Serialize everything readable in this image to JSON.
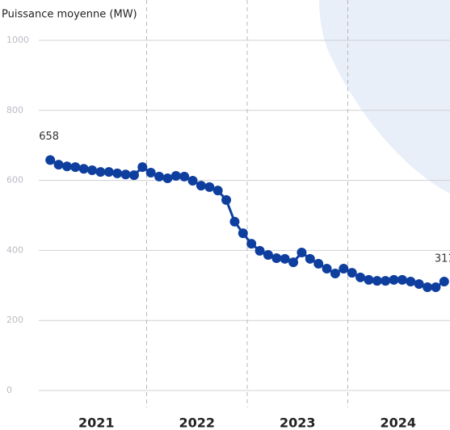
{
  "chart_data": {
    "type": "line",
    "title": "Puissance moyenne (MW)",
    "x": [
      0.5,
      1.5,
      2.5,
      3.5,
      4.5,
      5.5,
      6.5,
      7.5,
      8.5,
      9.5,
      10.5,
      11.5,
      12.5,
      13.5,
      14.5,
      15.5,
      16.5,
      17.5,
      18.5,
      19.5,
      20.5,
      21.5,
      22.5,
      23.5,
      24.5,
      25.5,
      26.5,
      27.5,
      28.5,
      29.5,
      30.5,
      31.5,
      32.5,
      33.5,
      34.5,
      35.5,
      36.5,
      37.5,
      38.5,
      39.5,
      40.5,
      41.5,
      42.5,
      43.5,
      44.5,
      45.5,
      46.5,
      47.5
    ],
    "series": [
      {
        "name": "Puissance moyenne",
        "color": "#0f3f9e",
        "values": [
          658,
          645,
          640,
          638,
          633,
          629,
          624,
          624,
          620,
          617,
          615,
          638,
          622,
          611,
          606,
          613,
          611,
          599,
          585,
          581,
          571,
          544,
          482,
          449,
          419,
          399,
          387,
          378,
          376,
          366,
          394,
          376,
          362,
          348,
          334,
          348,
          336,
          323,
          316,
          313,
          313,
          316,
          316,
          311,
          304,
          295,
          295,
          311
        ]
      }
    ],
    "xlim": [
      0,
      48
    ],
    "xticks": [
      {
        "value": 6,
        "label": "2021"
      },
      {
        "value": 18,
        "label": "2022"
      },
      {
        "value": 30,
        "label": "2023"
      },
      {
        "value": 42,
        "label": "2024"
      }
    ],
    "ylim": [
      0,
      1000
    ],
    "yticks": [
      0,
      200,
      400,
      600,
      800,
      1000
    ],
    "grid": true
  }
}
